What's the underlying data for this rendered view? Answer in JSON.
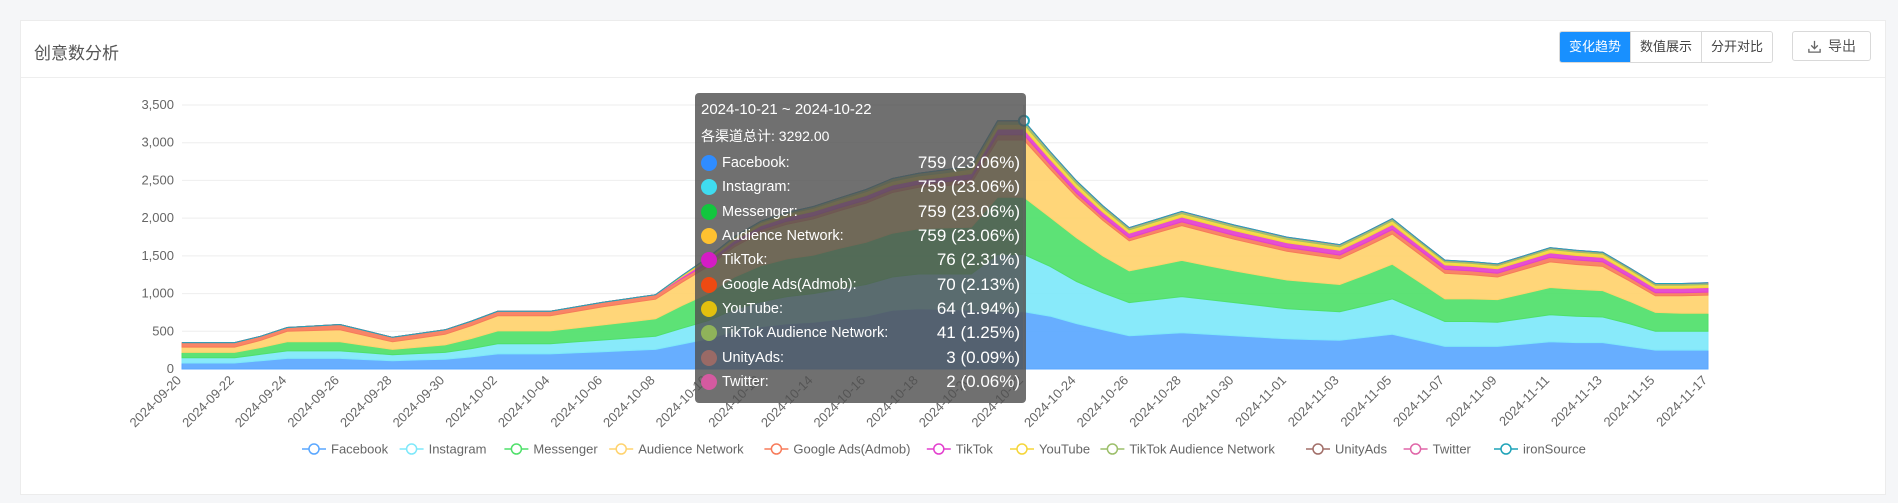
{
  "card": {
    "title": "创意数分析"
  },
  "toolbar": {
    "view_tabs": [
      {
        "label": "变化趋势",
        "active": true
      },
      {
        "label": "数值展示",
        "active": false
      },
      {
        "label": "分开对比",
        "active": false
      }
    ],
    "export_label": "导出",
    "export_icon": "download-icon"
  },
  "chart_data": {
    "type": "area",
    "stacked": true,
    "x": [
      "2024-09-20",
      "2024-09-21",
      "2024-09-22",
      "2024-09-23",
      "2024-09-24",
      "2024-09-25",
      "2024-09-26",
      "2024-09-27",
      "2024-09-28",
      "2024-09-29",
      "2024-09-30",
      "2024-10-01",
      "2024-10-02",
      "2024-10-03",
      "2024-10-04",
      "2024-10-05",
      "2024-10-06",
      "2024-10-07",
      "2024-10-08",
      "2024-10-09",
      "2024-10-10",
      "2024-10-11",
      "2024-10-12",
      "2024-10-13",
      "2024-10-14",
      "2024-10-15",
      "2024-10-16",
      "2024-10-17",
      "2024-10-18",
      "2024-10-19",
      "2024-10-20",
      "2024-10-21",
      "2024-10-22",
      "2024-10-23",
      "2024-10-24",
      "2024-10-25",
      "2024-10-26",
      "2024-10-27",
      "2024-10-28",
      "2024-10-29",
      "2024-10-30",
      "2024-10-31",
      "2024-11-01",
      "2024-11-02",
      "2024-11-03",
      "2024-11-04",
      "2024-11-05",
      "2024-11-06",
      "2024-11-07",
      "2024-11-08",
      "2024-11-09",
      "2024-11-10",
      "2024-11-11",
      "2024-11-12",
      "2024-11-13",
      "2024-11-14",
      "2024-11-15",
      "2024-11-16",
      "2024-11-17"
    ],
    "x_tick_labels": [
      "2024-09-20",
      "2024-09-22",
      "2024-09-24",
      "2024-09-26",
      "2024-09-28",
      "2024-09-30",
      "2024-10-02",
      "2024-10-04",
      "2024-10-06",
      "2024-10-08",
      "2024-10-10",
      "2024-10-12",
      "2024-10-14",
      "2024-10-16",
      "2024-10-18",
      "2024-10-20",
      "2024-10-22",
      "2024-10-24",
      "2024-10-26",
      "2024-10-28",
      "2024-10-30",
      "2024-11-01",
      "2024-11-03",
      "2024-11-05",
      "2024-11-07",
      "2024-11-09",
      "2024-11-11",
      "2024-11-13",
      "2024-11-15",
      "2024-11-17"
    ],
    "y_ticks": [
      0,
      500,
      1000,
      1500,
      2000,
      2500,
      3000,
      3500
    ],
    "y_tick_labels": [
      "0",
      "500",
      "1,000",
      "1,500",
      "2,000",
      "2,500",
      "3,000",
      "3,500"
    ],
    "ylim": [
      0,
      3500
    ],
    "grid": true,
    "legend_position": "bottom",
    "series": [
      {
        "name": "Facebook",
        "color": "#5aa7ff",
        "values": [
          80,
          80,
          80,
          110,
          140,
          140,
          140,
          125,
          110,
          120,
          130,
          160,
          200,
          200,
          200,
          215,
          230,
          245,
          260,
          330,
          400,
          500,
          560,
          600,
          620,
          660,
          700,
          780,
          800,
          790,
          780,
          759,
          759,
          700,
          600,
          520,
          440,
          460,
          480,
          460,
          440,
          420,
          400,
          390,
          380,
          420,
          460,
          380,
          300,
          300,
          300,
          330,
          360,
          350,
          350,
          300,
          250,
          250,
          250
        ]
      },
      {
        "name": "Instagram",
        "color": "#7ee8fa",
        "values": [
          70,
          70,
          70,
          85,
          100,
          100,
          100,
          90,
          80,
          85,
          90,
          110,
          135,
          135,
          135,
          145,
          155,
          165,
          175,
          210,
          240,
          290,
          330,
          360,
          380,
          400,
          420,
          440,
          460,
          470,
          480,
          759,
          759,
          660,
          560,
          490,
          440,
          460,
          480,
          460,
          440,
          420,
          400,
          390,
          380,
          420,
          470,
          400,
          330,
          330,
          320,
          340,
          360,
          350,
          340,
          300,
          250,
          250,
          250
        ]
      },
      {
        "name": "Messenger",
        "color": "#4fe06a",
        "values": [
          70,
          70,
          70,
          90,
          120,
          120,
          120,
          95,
          70,
          85,
          100,
          135,
          170,
          170,
          170,
          185,
          200,
          215,
          230,
          300,
          360,
          430,
          480,
          500,
          510,
          540,
          560,
          580,
          600,
          610,
          620,
          759,
          759,
          650,
          580,
          490,
          420,
          450,
          480,
          450,
          420,
          400,
          380,
          370,
          360,
          410,
          460,
          380,
          300,
          300,
          300,
          330,
          360,
          355,
          350,
          300,
          250,
          240,
          240
        ]
      },
      {
        "name": "Audience Network",
        "color": "#ffd36e",
        "values": [
          70,
          70,
          70,
          95,
          140,
          150,
          160,
          130,
          100,
          120,
          140,
          170,
          200,
          200,
          200,
          220,
          240,
          250,
          260,
          310,
          360,
          400,
          440,
          460,
          480,
          500,
          520,
          540,
          550,
          560,
          580,
          759,
          759,
          640,
          540,
          470,
          400,
          430,
          460,
          440,
          420,
          400,
          380,
          360,
          340,
          370,
          400,
          370,
          340,
          320,
          300,
          320,
          340,
          330,
          320,
          270,
          220,
          230,
          240
        ]
      },
      {
        "name": "Google Ads(Admob)",
        "color": "#f77b5a",
        "values": [
          60,
          60,
          60,
          55,
          50,
          60,
          70,
          65,
          60,
          60,
          60,
          60,
          60,
          60,
          60,
          60,
          60,
          60,
          60,
          50,
          40,
          40,
          40,
          40,
          40,
          40,
          40,
          40,
          40,
          50,
          60,
          70,
          70,
          60,
          50,
          45,
          40,
          45,
          50,
          50,
          50,
          50,
          50,
          50,
          50,
          55,
          60,
          55,
          50,
          50,
          50,
          55,
          60,
          60,
          60,
          50,
          40,
          40,
          40
        ]
      },
      {
        "name": "TikTok",
        "color": "#e33fce",
        "values": [
          0,
          0,
          0,
          0,
          0,
          0,
          0,
          0,
          0,
          0,
          0,
          0,
          0,
          0,
          0,
          0,
          0,
          0,
          0,
          20,
          40,
          45,
          50,
          55,
          60,
          60,
          60,
          60,
          60,
          65,
          70,
          76,
          76,
          70,
          70,
          65,
          60,
          62,
          65,
          65,
          65,
          65,
          65,
          65,
          65,
          65,
          65,
          60,
          60,
          60,
          60,
          60,
          60,
          60,
          60,
          60,
          60,
          60,
          60
        ]
      },
      {
        "name": "YouTube",
        "color": "#f5d63a",
        "values": [
          0,
          0,
          0,
          0,
          0,
          0,
          0,
          0,
          0,
          0,
          0,
          0,
          0,
          0,
          0,
          0,
          0,
          0,
          0,
          15,
          30,
          35,
          40,
          40,
          40,
          45,
          50,
          50,
          50,
          55,
          60,
          64,
          64,
          60,
          55,
          50,
          45,
          45,
          45,
          45,
          45,
          45,
          45,
          45,
          45,
          48,
          50,
          45,
          40,
          40,
          40,
          42,
          45,
          45,
          45,
          42,
          40,
          40,
          40
        ]
      },
      {
        "name": "TikTok Audience Network",
        "color": "#9cbf6a",
        "values": [
          0,
          0,
          0,
          0,
          0,
          0,
          0,
          0,
          0,
          0,
          0,
          0,
          0,
          0,
          0,
          0,
          0,
          0,
          0,
          5,
          10,
          15,
          20,
          20,
          25,
          25,
          30,
          35,
          35,
          38,
          40,
          41,
          41,
          38,
          35,
          30,
          25,
          25,
          25,
          25,
          25,
          25,
          25,
          25,
          25,
          25,
          25,
          22,
          20,
          20,
          20,
          20,
          20,
          20,
          20,
          20,
          20,
          20,
          20
        ]
      },
      {
        "name": "UnityAds",
        "color": "#a26f69",
        "values": [
          0,
          0,
          0,
          0,
          0,
          0,
          0,
          0,
          0,
          0,
          0,
          0,
          0,
          0,
          0,
          0,
          0,
          0,
          0,
          0,
          0,
          0,
          0,
          0,
          0,
          0,
          0,
          0,
          0,
          2,
          2,
          3,
          3,
          2,
          2,
          2,
          2,
          2,
          2,
          2,
          2,
          2,
          2,
          2,
          2,
          2,
          2,
          2,
          2,
          2,
          2,
          2,
          2,
          2,
          2,
          2,
          2,
          2,
          2
        ]
      },
      {
        "name": "Twitter",
        "color": "#e066a8",
        "values": [
          0,
          0,
          0,
          0,
          0,
          0,
          0,
          0,
          0,
          0,
          0,
          0,
          0,
          0,
          0,
          0,
          0,
          0,
          0,
          0,
          0,
          0,
          0,
          0,
          0,
          0,
          0,
          0,
          0,
          1,
          1,
          2,
          2,
          2,
          2,
          2,
          2,
          2,
          2,
          2,
          2,
          2,
          2,
          2,
          2,
          2,
          2,
          2,
          2,
          2,
          2,
          2,
          2,
          2,
          2,
          2,
          2,
          2,
          2
        ]
      },
      {
        "name": "ironSource",
        "color": "#1fa3b8",
        "values": [
          0,
          0,
          0,
          0,
          0,
          0,
          0,
          0,
          0,
          0,
          0,
          0,
          0,
          0,
          0,
          0,
          0,
          0,
          0,
          0,
          0,
          0,
          0,
          0,
          0,
          0,
          0,
          0,
          0,
          0,
          0,
          0,
          0,
          0,
          0,
          0,
          0,
          0,
          0,
          0,
          0,
          0,
          0,
          0,
          0,
          0,
          0,
          0,
          0,
          0,
          0,
          0,
          0,
          0,
          0,
          0,
          0,
          0,
          0
        ]
      }
    ],
    "hover_index": 32,
    "tooltip": {
      "date_range": "2024-10-21 ~ 2024-10-22",
      "total_label": "各渠道总计: 3292.00",
      "rows": [
        {
          "name": "Facebook:",
          "value": "759 (23.06%)",
          "color": "#2f8cff"
        },
        {
          "name": "Instagram:",
          "value": "759 (23.06%)",
          "color": "#3fdcf0"
        },
        {
          "name": "Messenger:",
          "value": "759 (23.06%)",
          "color": "#12c63e"
        },
        {
          "name": "Audience Network:",
          "value": "759 (23.06%)",
          "color": "#ffc130"
        },
        {
          "name": "TikTok:",
          "value": "76 (2.31%)",
          "color": "#d51cc5"
        },
        {
          "name": "Google Ads(Admob):",
          "value": "70 (2.13%)",
          "color": "#ee4a12"
        },
        {
          "name": "YouTube:",
          "value": "64 (1.94%)",
          "color": "#e3c00e"
        },
        {
          "name": "TikTok Audience Network:",
          "value": "41 (1.25%)",
          "color": "#8fb35a"
        },
        {
          "name": "UnityAds:",
          "value": "3 (0.09%)",
          "color": "#9a6a66"
        },
        {
          "name": "Twitter:",
          "value": "2 (0.06%)",
          "color": "#d45aa0"
        }
      ]
    }
  }
}
